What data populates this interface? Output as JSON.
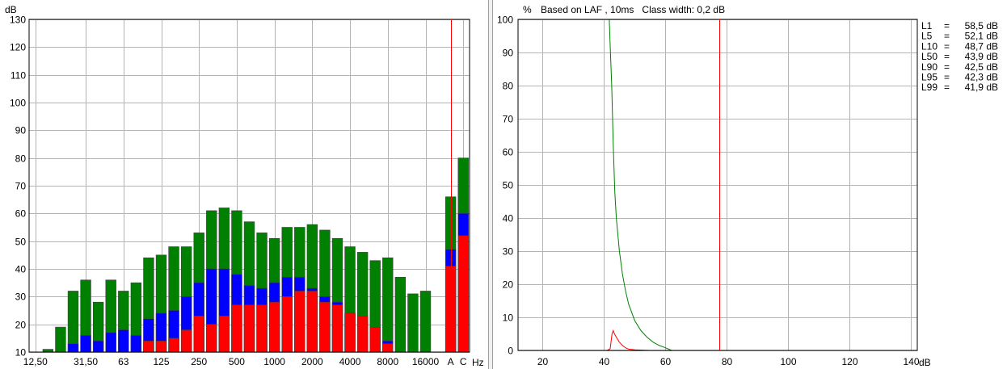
{
  "chart_data": [
    {
      "type": "bar",
      "ylabel": "dB",
      "xlabel": "Hz",
      "ylim": [
        10,
        130
      ],
      "yticks": [
        10,
        20,
        30,
        40,
        50,
        60,
        70,
        80,
        90,
        100,
        110,
        120,
        130
      ],
      "grid": true,
      "x_tick_labels": [
        "12,50",
        "31,50",
        "63",
        "125",
        "250",
        "500",
        "1000",
        "2000",
        "4000",
        "8000",
        "16000",
        "A",
        "C"
      ],
      "x_tick_bar_index": [
        0,
        4,
        7,
        10,
        13,
        16,
        19,
        22,
        25,
        28,
        31,
        33,
        34
      ],
      "categories": [
        "12.5",
        "16",
        "20",
        "25",
        "31.5",
        "40",
        "50",
        "63",
        "80",
        "100",
        "125",
        "160",
        "200",
        "250",
        "315",
        "400",
        "500",
        "630",
        "800",
        "1000",
        "1250",
        "1600",
        "2000",
        "2500",
        "3150",
        "4000",
        "5000",
        "6300",
        "8000",
        "10000",
        "12500",
        "16000",
        "20000",
        "A",
        "C"
      ],
      "cursor_x": "A",
      "series": [
        {
          "color": "#008000",
          "values": [
            null,
            11,
            19,
            32,
            36,
            28,
            36,
            32,
            35,
            44,
            45,
            48,
            48,
            53,
            61,
            62,
            61,
            57,
            53,
            51,
            55,
            55,
            56,
            54,
            51,
            48,
            46,
            43,
            44,
            37,
            31,
            32,
            null,
            66,
            80
          ]
        },
        {
          "color": "#0000ff",
          "values": [
            null,
            null,
            null,
            13,
            16,
            14,
            17,
            18,
            16,
            22,
            24,
            25,
            30,
            35,
            40,
            40,
            38,
            34,
            33,
            35,
            37,
            37,
            33,
            30,
            28,
            24,
            22,
            17,
            14,
            null,
            null,
            null,
            null,
            47,
            60
          ]
        },
        {
          "color": "#ff0000",
          "values": [
            null,
            null,
            null,
            null,
            null,
            null,
            null,
            null,
            null,
            14,
            14,
            15,
            18,
            23,
            20,
            23,
            27,
            27,
            27,
            28,
            30,
            32,
            32,
            28,
            27,
            24,
            23,
            19,
            13,
            null,
            null,
            null,
            null,
            41,
            52
          ]
        }
      ]
    },
    {
      "type": "line",
      "ylabel": "%",
      "xlabel": "dB",
      "title": "Based on LAF , 10ms   Class width: 0,2 dB",
      "xlim": [
        12,
        142
      ],
      "ylim": [
        0,
        100
      ],
      "xticks": [
        20,
        40,
        60,
        80,
        100,
        120,
        140
      ],
      "yticks": [
        0,
        10,
        20,
        30,
        40,
        50,
        60,
        70,
        80,
        90,
        100
      ],
      "grid": true,
      "cursor_x": 77.4,
      "series": [
        {
          "color": "#008000",
          "points": [
            [
              12,
              100
            ],
            [
              41.7,
              100
            ],
            [
              42,
              92
            ],
            [
              42.5,
              80
            ],
            [
              43,
              62
            ],
            [
              43.5,
              48
            ],
            [
              44,
              40
            ],
            [
              45,
              30
            ],
            [
              46,
              23
            ],
            [
              47,
              18
            ],
            [
              48,
              14
            ],
            [
              50,
              9
            ],
            [
              52,
              6
            ],
            [
              54,
              4
            ],
            [
              56,
              2.5
            ],
            [
              58,
              1.5
            ],
            [
              60,
              0.8
            ],
            [
              62,
              0
            ]
          ]
        },
        {
          "color": "#ff0000",
          "points": [
            [
              41,
              0
            ],
            [
              42,
              0.5
            ],
            [
              42.6,
              5
            ],
            [
              43,
              6
            ],
            [
              43.4,
              5
            ],
            [
              44,
              4
            ],
            [
              45,
              2.5
            ],
            [
              46,
              1.5
            ],
            [
              47,
              0.8
            ],
            [
              48,
              0.4
            ],
            [
              50,
              0.2
            ],
            [
              52,
              0.1
            ],
            [
              55,
              0
            ],
            [
              62,
              0
            ]
          ]
        }
      ],
      "stats": [
        {
          "label": "L1",
          "value": "58,5 dB"
        },
        {
          "label": "L5",
          "value": "52,1 dB"
        },
        {
          "label": "L10",
          "value": "48,7 dB"
        },
        {
          "label": "L50",
          "value": "43,9 dB"
        },
        {
          "label": "L90",
          "value": "42,5 dB"
        },
        {
          "label": "L95",
          "value": "42,3 dB"
        },
        {
          "label": "L99",
          "value": "41,9 dB"
        }
      ]
    }
  ]
}
